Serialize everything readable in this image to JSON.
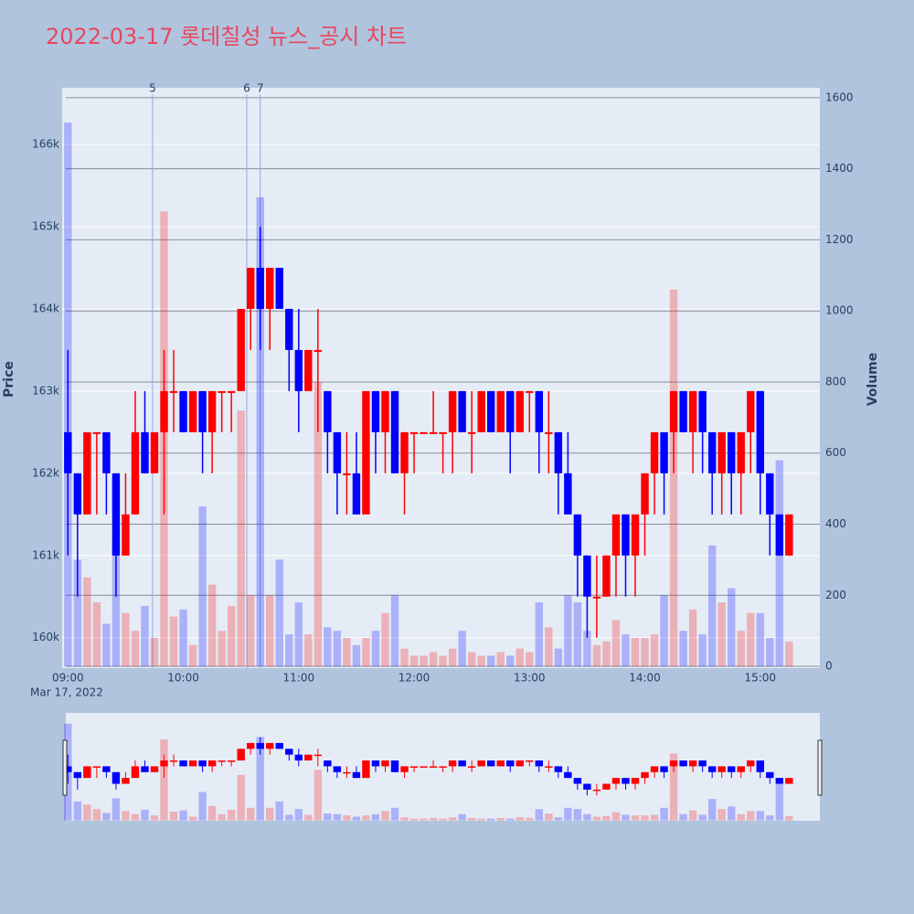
{
  "chart_data": {
    "type": "candlestick",
    "title": "2022-03-17 롯데칠성 뉴스_공시 차트",
    "y_label": "Price",
    "y2_label": "Volume",
    "x_sublabel": "Mar 17, 2022",
    "increasing_color": "#ff0000",
    "decreasing_color": "#0000ff",
    "range_slider": true,
    "xlim": [
      "2022-03-17 08:57",
      "2022-03-17 15:31"
    ],
    "xticks": [
      {
        "value": "2022-03-17 09:00",
        "label": "09:00"
      },
      {
        "value": "2022-03-17 10:00",
        "label": "10:00"
      },
      {
        "value": "2022-03-17 11:00",
        "label": "11:00"
      },
      {
        "value": "2022-03-17 12:00",
        "label": "12:00"
      },
      {
        "value": "2022-03-17 13:00",
        "label": "13:00"
      },
      {
        "value": "2022-03-17 14:00",
        "label": "14:00"
      },
      {
        "value": "2022-03-17 15:00",
        "label": "15:00"
      }
    ],
    "ylim": [
      159630,
      166690
    ],
    "yticks": [
      {
        "value": 160000,
        "label": "160k"
      },
      {
        "value": 161000,
        "label": "161k"
      },
      {
        "value": 162000,
        "label": "162k"
      },
      {
        "value": 163000,
        "label": "163k"
      },
      {
        "value": 164000,
        "label": "164k"
      },
      {
        "value": 165000,
        "label": "165k"
      },
      {
        "value": 166000,
        "label": "166k"
      }
    ],
    "y2lim": [
      -5,
      1628
    ],
    "y2ticks": [
      0,
      200,
      400,
      600,
      800,
      1000,
      1200,
      1400,
      1600
    ],
    "annotations": [
      {
        "x": "2022-03-17 09:44",
        "text": "5"
      },
      {
        "x": "2022-03-17 10:33",
        "text": "6"
      },
      {
        "x": "2022-03-17 10:40",
        "text": "7"
      }
    ],
    "x": [
      "2022-03-17 09:00",
      "2022-03-17 09:05",
      "2022-03-17 09:10",
      "2022-03-17 09:15",
      "2022-03-17 09:20",
      "2022-03-17 09:25",
      "2022-03-17 09:30",
      "2022-03-17 09:35",
      "2022-03-17 09:40",
      "2022-03-17 09:45",
      "2022-03-17 09:50",
      "2022-03-17 09:55",
      "2022-03-17 10:00",
      "2022-03-17 10:05",
      "2022-03-17 10:10",
      "2022-03-17 10:15",
      "2022-03-17 10:20",
      "2022-03-17 10:25",
      "2022-03-17 10:30",
      "2022-03-17 10:35",
      "2022-03-17 10:40",
      "2022-03-17 10:45",
      "2022-03-17 10:50",
      "2022-03-17 10:55",
      "2022-03-17 11:00",
      "2022-03-17 11:05",
      "2022-03-17 11:10",
      "2022-03-17 11:15",
      "2022-03-17 11:20",
      "2022-03-17 11:25",
      "2022-03-17 11:30",
      "2022-03-17 11:35",
      "2022-03-17 11:40",
      "2022-03-17 11:45",
      "2022-03-17 11:50",
      "2022-03-17 11:55",
      "2022-03-17 12:00",
      "2022-03-17 12:05",
      "2022-03-17 12:10",
      "2022-03-17 12:15",
      "2022-03-17 12:20",
      "2022-03-17 12:25",
      "2022-03-17 12:30",
      "2022-03-17 12:35",
      "2022-03-17 12:40",
      "2022-03-17 12:45",
      "2022-03-17 12:50",
      "2022-03-17 12:55",
      "2022-03-17 13:00",
      "2022-03-17 13:05",
      "2022-03-17 13:10",
      "2022-03-17 13:15",
      "2022-03-17 13:20",
      "2022-03-17 13:25",
      "2022-03-17 13:30",
      "2022-03-17 13:35",
      "2022-03-17 13:40",
      "2022-03-17 13:45",
      "2022-03-17 13:50",
      "2022-03-17 13:55",
      "2022-03-17 14:00",
      "2022-03-17 14:05",
      "2022-03-17 14:10",
      "2022-03-17 14:15",
      "2022-03-17 14:20",
      "2022-03-17 14:25",
      "2022-03-17 14:30",
      "2022-03-17 14:35",
      "2022-03-17 14:40",
      "2022-03-17 14:45",
      "2022-03-17 14:50",
      "2022-03-17 14:55",
      "2022-03-17 15:00",
      "2022-03-17 15:05",
      "2022-03-17 15:10",
      "2022-03-17 15:15"
    ],
    "open": [
      162500,
      162000,
      161500,
      162500,
      162500,
      162000,
      161000,
      161500,
      162500,
      162000,
      162500,
      163000,
      163000,
      162500,
      163000,
      162500,
      163000,
      163000,
      163000,
      164000,
      164500,
      164000,
      164500,
      164000,
      163500,
      163000,
      163500,
      163000,
      162500,
      162000,
      162000,
      161500,
      163000,
      162500,
      163000,
      162000,
      162500,
      162500,
      162500,
      162500,
      162500,
      163000,
      162500,
      162500,
      163000,
      162500,
      163000,
      162500,
      163000,
      163000,
      162500,
      162500,
      162000,
      161500,
      161000,
      160500,
      160500,
      161000,
      161500,
      161000,
      161500,
      162000,
      162500,
      162500,
      163000,
      162500,
      163000,
      162500,
      162000,
      162500,
      162000,
      162500,
      163000,
      162000,
      161500,
      161000
    ],
    "high": [
      163500,
      162000,
      162500,
      162500,
      162500,
      162000,
      162000,
      163000,
      163000,
      162500,
      163500,
      163500,
      163000,
      163000,
      163000,
      163000,
      163000,
      163000,
      164000,
      164500,
      165000,
      164500,
      164500,
      164000,
      164000,
      163500,
      164000,
      163000,
      162500,
      162500,
      162500,
      163000,
      163000,
      163000,
      163000,
      162500,
      162500,
      162500,
      163000,
      162500,
      163000,
      163000,
      163000,
      163000,
      163000,
      163000,
      163000,
      163000,
      163000,
      163000,
      163000,
      162500,
      162500,
      161500,
      161000,
      161000,
      161000,
      161500,
      161500,
      161500,
      162000,
      162500,
      162500,
      163000,
      163000,
      163000,
      163000,
      162500,
      162500,
      162500,
      162500,
      163000,
      163000,
      162000,
      161500,
      161500
    ],
    "low": [
      161000,
      160500,
      161500,
      161500,
      161500,
      160500,
      161000,
      161500,
      162000,
      162000,
      161500,
      162500,
      162500,
      162500,
      162000,
      162000,
      162500,
      162500,
      163000,
      163500,
      163500,
      163500,
      164000,
      163000,
      162500,
      163000,
      162500,
      162000,
      161500,
      161500,
      161500,
      161500,
      162000,
      162000,
      162000,
      161500,
      162000,
      162500,
      162500,
      162000,
      162000,
      162500,
      162000,
      162500,
      162500,
      162500,
      162000,
      162500,
      162500,
      162000,
      162000,
      161500,
      161500,
      160500,
      160000,
      160000,
      160500,
      160500,
      160500,
      160500,
      161000,
      161500,
      161500,
      162000,
      162500,
      162000,
      162000,
      161500,
      161500,
      161500,
      161500,
      162000,
      161500,
      161000,
      161000,
      161000
    ],
    "close": [
      162000,
      161500,
      162500,
      162500,
      162000,
      161000,
      161500,
      162500,
      162000,
      162500,
      163000,
      163000,
      162500,
      163000,
      162500,
      163000,
      163000,
      163000,
      164000,
      164500,
      164000,
      164500,
      164000,
      163500,
      163000,
      163500,
      163500,
      162500,
      162000,
      162000,
      161500,
      163000,
      162500,
      163000,
      162000,
      162500,
      162500,
      162500,
      162500,
      162500,
      163000,
      162500,
      162500,
      163000,
      162500,
      163000,
      162500,
      163000,
      163000,
      162500,
      162500,
      162000,
      161500,
      161000,
      160500,
      160500,
      161000,
      161500,
      161000,
      161500,
      162000,
      162500,
      162000,
      163000,
      162500,
      163000,
      162500,
      162000,
      162500,
      162000,
      162500,
      163000,
      162000,
      161500,
      161000,
      161500
    ],
    "volume": [
      1530,
      300,
      250,
      180,
      120,
      350,
      150,
      100,
      170,
      80,
      1280,
      140,
      160,
      60,
      450,
      230,
      100,
      170,
      720,
      200,
      1320,
      200,
      300,
      90,
      180,
      90,
      800,
      110,
      100,
      80,
      60,
      80,
      100,
      150,
      200,
      50,
      30,
      30,
      40,
      30,
      50,
      100,
      40,
      30,
      30,
      40,
      30,
      50,
      40,
      180,
      110,
      50,
      200,
      180,
      100,
      60,
      70,
      130,
      90,
      80,
      80,
      90,
      200,
      1060,
      100,
      160,
      90,
      340,
      180,
      220,
      100,
      150,
      150,
      80,
      580,
      70
    ]
  }
}
